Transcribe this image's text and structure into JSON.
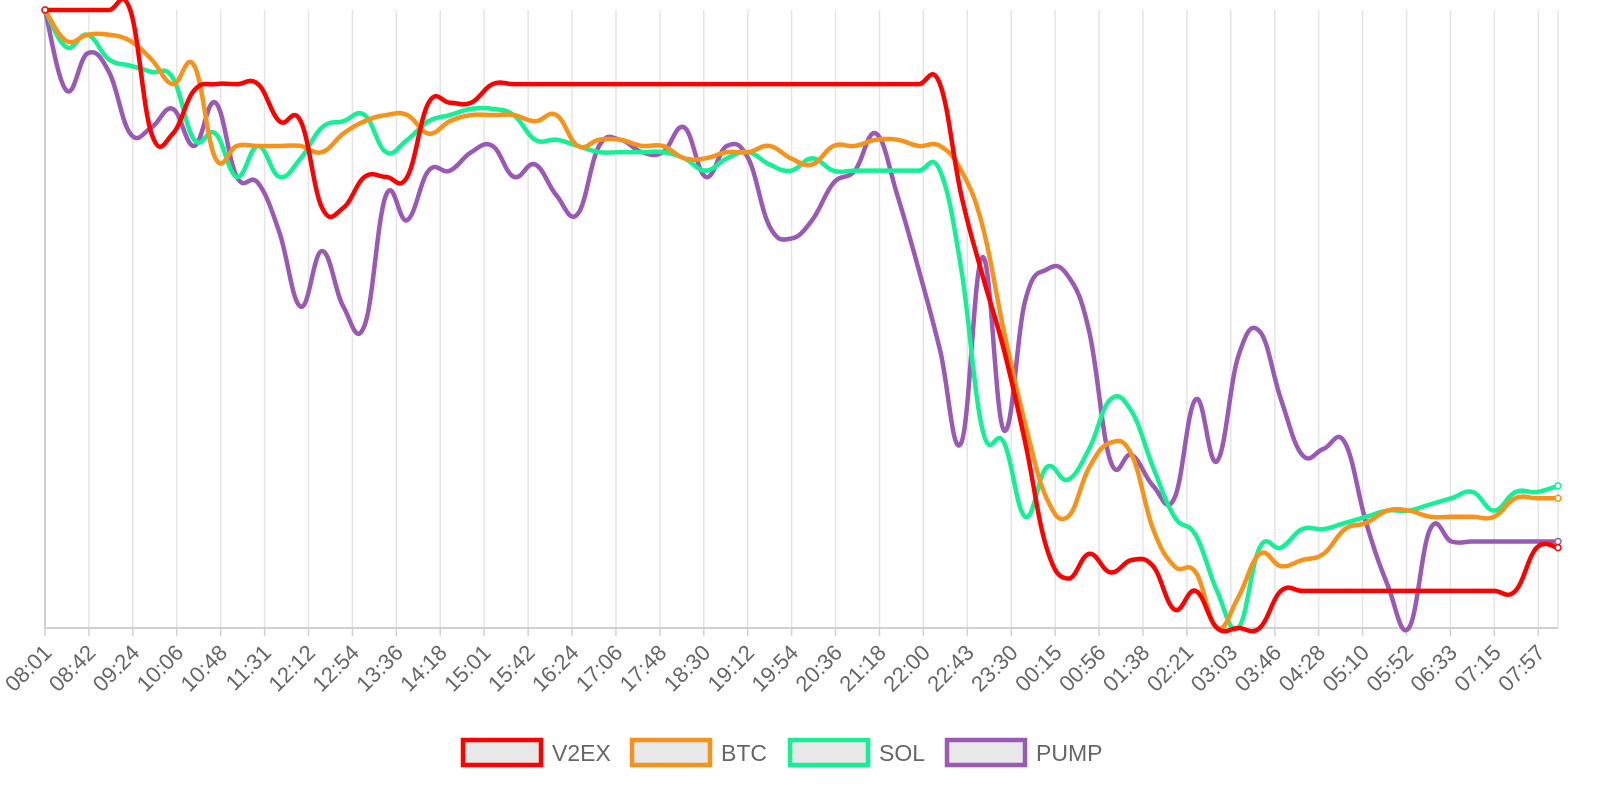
{
  "chart_data": {
    "type": "line",
    "title": "",
    "xlabel": "",
    "ylabel": "",
    "y_axis": "hidden (no tick labels shown); values are relative to the start point",
    "ylim": [
      -100,
      0
    ],
    "grid": "vertical lines only",
    "legend_position": "bottom",
    "x_tick_labels": [
      "08:01",
      "08:42",
      "09:24",
      "10:06",
      "10:48",
      "11:31",
      "12:12",
      "12:54",
      "13:36",
      "14:18",
      "15:01",
      "15:42",
      "16:24",
      "17:06",
      "17:48",
      "18:30",
      "19:12",
      "19:54",
      "20:36",
      "21:18",
      "22:00",
      "22:43",
      "23:30",
      "00:15",
      "00:56",
      "01:38",
      "02:21",
      "03:03",
      "03:46",
      "04:28",
      "05:10",
      "05:52",
      "06:33",
      "07:15",
      "07:57"
    ],
    "series": [
      {
        "name": "V2EX",
        "color": "#ff0000",
        "values": [
          0,
          0,
          0,
          0,
          0,
          -20,
          -20,
          -13,
          -12,
          -12,
          -12,
          -18,
          -18,
          -32,
          -32,
          -27,
          -27,
          -27,
          -15,
          -15,
          -15,
          -12,
          -12,
          -12,
          -12,
          -12,
          -12,
          -12,
          -12,
          -12,
          -12,
          -12,
          -12,
          -12,
          -12,
          -12,
          -12,
          -12,
          -12,
          -12,
          -12,
          -12,
          -12,
          -30,
          -43,
          -55,
          -70,
          -87,
          -92,
          -88,
          -91,
          -89,
          -90,
          -97,
          -94,
          -100,
          -100,
          -100,
          -94,
          -94,
          -94,
          -94,
          -94,
          -94,
          -94,
          -94,
          -94,
          -94,
          -94,
          -94,
          -87,
          -87
        ]
      },
      {
        "name": "BTC",
        "color": "#f7931a",
        "values": [
          0,
          -5,
          -4,
          -4,
          -5,
          -8,
          -12,
          -9,
          -24,
          -22,
          -22,
          -22,
          -22,
          -23,
          -20,
          -18,
          -17,
          -17,
          -20,
          -18,
          -17,
          -17,
          -17,
          -18,
          -17,
          -22,
          -21,
          -21,
          -22,
          -22,
          -24,
          -24,
          -23,
          -23,
          -22,
          -24,
          -25,
          -22,
          -22,
          -21,
          -21,
          -22,
          -22,
          -26,
          -35,
          -52,
          -67,
          -79,
          -82,
          -74,
          -70,
          -72,
          -84,
          -90,
          -91,
          -100,
          -95,
          -88,
          -90,
          -89,
          -88,
          -84,
          -83,
          -81,
          -81,
          -82,
          -82,
          -82,
          -82,
          -79,
          -79,
          -79
        ]
      },
      {
        "name": "SOL",
        "color": "#14f195",
        "values": [
          0,
          -6,
          -4,
          -8,
          -9,
          -10,
          -11,
          -21,
          -20,
          -27,
          -22,
          -27,
          -24,
          -19,
          -18,
          -17,
          -23,
          -21,
          -18,
          -17,
          -16,
          -16,
          -17,
          -21,
          -21,
          -22,
          -23,
          -23,
          -23,
          -23,
          -24,
          -26,
          -24,
          -23,
          -25,
          -26,
          -24,
          -26,
          -26,
          -26,
          -26,
          -26,
          -26,
          -42,
          -68,
          -70,
          -82,
          -74,
          -76,
          -71,
          -63,
          -65,
          -74,
          -82,
          -85,
          -94,
          -100,
          -87,
          -87,
          -84,
          -84,
          -83,
          -82,
          -81,
          -81,
          -80,
          -79,
          -78,
          -81,
          -78,
          -78,
          -77
        ]
      },
      {
        "name": "PUMP",
        "color": "#9b59b6",
        "values": [
          0,
          -13,
          -7,
          -10,
          -20,
          -19,
          -16,
          -22,
          -15,
          -27,
          -28,
          -36,
          -48,
          -39,
          -48,
          -51,
          -30,
          -34,
          -26,
          -26,
          -23,
          -22,
          -27,
          -25,
          -30,
          -33,
          -22,
          -21,
          -23,
          -23,
          -19,
          -27,
          -22,
          -24,
          -35,
          -37,
          -34,
          -28,
          -26,
          -20,
          -30,
          -42,
          -55,
          -70,
          -40,
          -68,
          -47,
          -42,
          -43,
          -52,
          -73,
          -72,
          -77,
          -79,
          -63,
          -73,
          -56,
          -52,
          -63,
          -72,
          -71,
          -70,
          -83,
          -93,
          -100,
          -84,
          -86,
          -86,
          -86,
          -86,
          -86,
          -86
        ]
      }
    ],
    "legend": [
      "V2EX",
      "BTC",
      "SOL",
      "PUMP"
    ]
  }
}
